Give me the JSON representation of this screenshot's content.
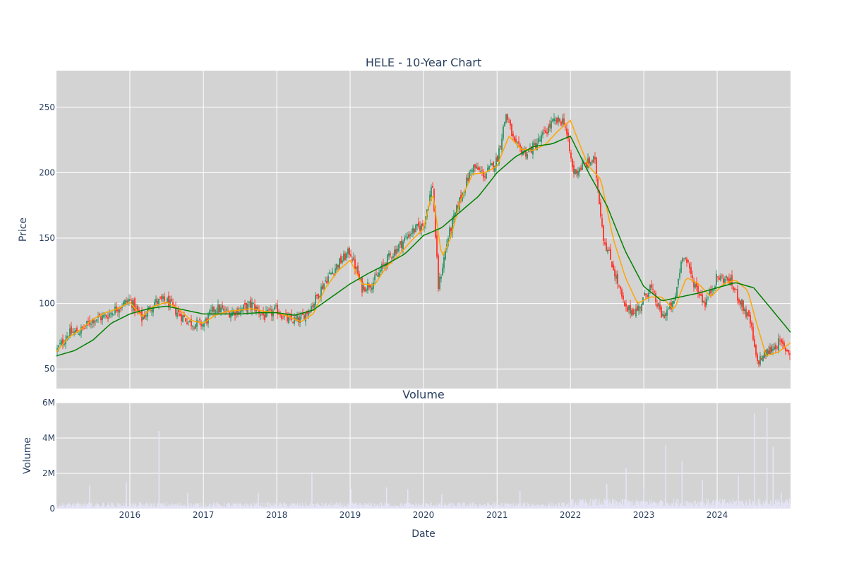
{
  "chart_data": [
    {
      "type": "line",
      "title": "HELE - 10-Year Chart",
      "ylabel": "Price",
      "xlim": [
        "2015-01-01",
        "2024-12-31"
      ],
      "ylim": [
        35,
        278
      ],
      "y_ticks": [
        50,
        100,
        150,
        200,
        250
      ],
      "grid": true,
      "background_color": "#d3d3d3",
      "legend": "none",
      "series": [
        {
          "type": "candlestick",
          "up_color": "#3d9970",
          "down_color": "#ff4136",
          "x": [
            "2015-01-01",
            "2015-03-01",
            "2015-05-01",
            "2015-07-01",
            "2015-09-01",
            "2015-11-01",
            "2016-01-01",
            "2016-03-01",
            "2016-05-01",
            "2016-07-01",
            "2016-09-01",
            "2016-11-01",
            "2017-01-01",
            "2017-03-01",
            "2017-05-01",
            "2017-07-01",
            "2017-09-01",
            "2017-11-01",
            "2018-01-01",
            "2018-03-01",
            "2018-05-01",
            "2018-07-01",
            "2018-09-01",
            "2018-11-01",
            "2019-01-01",
            "2019-03-01",
            "2019-05-01",
            "2019-07-01",
            "2019-09-01",
            "2019-11-01",
            "2020-01-01",
            "2020-02-15",
            "2020-03-15",
            "2020-05-01",
            "2020-07-01",
            "2020-09-01",
            "2020-11-01",
            "2021-01-01",
            "2021-02-15",
            "2021-04-01",
            "2021-06-01",
            "2021-08-01",
            "2021-10-01",
            "2021-12-01",
            "2022-01-15",
            "2022-03-01",
            "2022-05-01",
            "2022-06-15",
            "2022-08-01",
            "2022-10-01",
            "2022-12-01",
            "2023-02-01",
            "2023-04-01",
            "2023-06-01",
            "2023-07-15",
            "2023-09-01",
            "2023-11-01",
            "2024-01-01",
            "2024-03-01",
            "2024-05-01",
            "2024-06-15",
            "2024-07-15",
            "2024-09-01",
            "2024-11-01",
            "2024-12-31"
          ],
          "close": [
            64,
            77,
            79,
            88,
            90,
            97,
            103,
            88,
            101,
            102,
            92,
            85,
            84,
            97,
            93,
            95,
            99,
            90,
            95,
            87,
            88,
            100,
            118,
            130,
            140,
            112,
            117,
            133,
            144,
            155,
            160,
            192,
            112,
            150,
            180,
            205,
            198,
            210,
            245,
            220,
            215,
            225,
            238,
            240,
            200,
            205,
            210,
            150,
            128,
            95,
            95,
            113,
            90,
            100,
            140,
            118,
            100,
            120,
            118,
            100,
            85,
            55,
            62,
            70,
            62
          ],
          "wick_spread": 4
        },
        {
          "name": "",
          "type": "line",
          "color": "#ffa500",
          "x": [
            "2015-01-01",
            "2015-03-01",
            "2015-05-01",
            "2015-07-01",
            "2015-09-01",
            "2015-11-01",
            "2016-01-01",
            "2016-03-01",
            "2016-05-01",
            "2016-07-01",
            "2016-09-01",
            "2016-11-01",
            "2017-01-01",
            "2017-03-01",
            "2017-05-01",
            "2017-07-01",
            "2017-09-01",
            "2017-11-01",
            "2018-01-01",
            "2018-03-01",
            "2018-05-01",
            "2018-07-01",
            "2018-09-01",
            "2018-11-01",
            "2019-01-01",
            "2019-03-01",
            "2019-05-01",
            "2019-07-01",
            "2019-09-01",
            "2019-11-01",
            "2020-01-01",
            "2020-02-15",
            "2020-04-01",
            "2020-05-15",
            "2020-07-01",
            "2020-09-01",
            "2020-11-01",
            "2021-01-01",
            "2021-03-01",
            "2021-05-01",
            "2021-07-01",
            "2021-09-01",
            "2021-11-01",
            "2022-01-01",
            "2022-02-15",
            "2022-04-01",
            "2022-06-01",
            "2022-08-01",
            "2022-10-01",
            "2022-12-01",
            "2023-02-01",
            "2023-04-01",
            "2023-06-01",
            "2023-08-01",
            "2023-10-01",
            "2023-12-01",
            "2024-02-01",
            "2024-04-01",
            "2024-06-01",
            "2024-07-15",
            "2024-09-01",
            "2024-11-01",
            "2024-12-31"
          ],
          "y": [
            63,
            74,
            80,
            88,
            93,
            96,
            101,
            90,
            98,
            101,
            96,
            87,
            85,
            91,
            94,
            95,
            96,
            94,
            93,
            90,
            86,
            92,
            112,
            125,
            133,
            115,
            114,
            128,
            137,
            148,
            157,
            186,
            135,
            150,
            178,
            199,
            200,
            205,
            228,
            218,
            217,
            222,
            232,
            240,
            222,
            205,
            195,
            150,
            120,
            100,
            105,
            105,
            95,
            120,
            115,
            105,
            115,
            118,
            110,
            85,
            60,
            63,
            70
          ]
        },
        {
          "name": "",
          "type": "line",
          "color": "#008000",
          "x": [
            "2015-01-01",
            "2015-04-01",
            "2015-07-01",
            "2015-10-01",
            "2016-01-01",
            "2016-04-01",
            "2016-07-01",
            "2016-10-01",
            "2017-01-01",
            "2017-04-01",
            "2017-07-01",
            "2017-10-01",
            "2018-01-01",
            "2018-04-01",
            "2018-07-01",
            "2018-10-01",
            "2019-01-01",
            "2019-04-01",
            "2019-07-01",
            "2019-10-01",
            "2020-01-01",
            "2020-04-01",
            "2020-07-01",
            "2020-10-01",
            "2021-01-01",
            "2021-04-01",
            "2021-07-01",
            "2021-10-01",
            "2022-01-01",
            "2022-04-01",
            "2022-07-01",
            "2022-10-01",
            "2023-01-01",
            "2023-04-01",
            "2023-07-01",
            "2023-10-01",
            "2024-01-01",
            "2024-04-01",
            "2024-07-01",
            "2024-10-01",
            "2024-12-31"
          ],
          "y": [
            60,
            64,
            72,
            85,
            92,
            96,
            98,
            95,
            92,
            92,
            92,
            93,
            93,
            91,
            95,
            105,
            115,
            123,
            130,
            138,
            152,
            158,
            170,
            182,
            200,
            212,
            220,
            222,
            228,
            200,
            175,
            140,
            113,
            102,
            105,
            108,
            112,
            116,
            112,
            95,
            78
          ]
        }
      ]
    },
    {
      "type": "bar",
      "title": "Volume",
      "xlabel": "Date",
      "ylabel": "Volume",
      "xlim": [
        "2015-01-01",
        "2024-12-31"
      ],
      "ylim": [
        0,
        6000000
      ],
      "y_ticks": [
        0,
        2000000,
        4000000,
        6000000
      ],
      "y_tick_labels": [
        "0",
        "2M",
        "4M",
        "6M"
      ],
      "x_ticks": [
        "2016",
        "2017",
        "2018",
        "2019",
        "2020",
        "2021",
        "2022",
        "2023",
        "2024"
      ],
      "grid": true,
      "background_color": "#d3d3d3",
      "bar_color": "#e6e6fa",
      "legend": "none",
      "baseline_volume": 250000,
      "volume_spikes": [
        {
          "x": "2015-06-15",
          "value": 1300000
        },
        {
          "x": "2015-12-15",
          "value": 1500000
        },
        {
          "x": "2016-05-25",
          "value": 4400000
        },
        {
          "x": "2016-10-15",
          "value": 900000
        },
        {
          "x": "2017-10-01",
          "value": 900000
        },
        {
          "x": "2018-06-25",
          "value": 2100000
        },
        {
          "x": "2019-01-05",
          "value": 1100000
        },
        {
          "x": "2019-07-01",
          "value": 1200000
        },
        {
          "x": "2019-10-15",
          "value": 1100000
        },
        {
          "x": "2020-04-01",
          "value": 800000
        },
        {
          "x": "2021-04-25",
          "value": 1000000
        },
        {
          "x": "2022-07-01",
          "value": 1400000
        },
        {
          "x": "2022-10-05",
          "value": 2300000
        },
        {
          "x": "2023-01-01",
          "value": 1200000
        },
        {
          "x": "2023-04-20",
          "value": 3600000
        },
        {
          "x": "2023-07-10",
          "value": 2700000
        },
        {
          "x": "2023-10-20",
          "value": 1600000
        },
        {
          "x": "2024-04-15",
          "value": 1900000
        },
        {
          "x": "2024-07-05",
          "value": 5400000
        },
        {
          "x": "2024-09-05",
          "value": 5700000
        },
        {
          "x": "2024-10-05",
          "value": 3500000
        },
        {
          "x": "2024-11-15",
          "value": 900000
        }
      ]
    }
  ]
}
